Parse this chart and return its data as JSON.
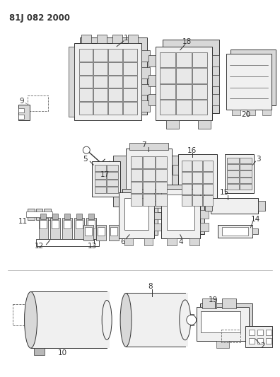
{
  "title": "81J 082 2000",
  "bg": "#ffffff",
  "lc": "#333333",
  "fc_light": "#f0f0f0",
  "fc_med": "#d8d8d8",
  "fc_dark": "#b8b8b8",
  "lw": 0.7,
  "lfs": 7.5,
  "tfs": 8.5,
  "fig_w": 3.96,
  "fig_h": 5.33,
  "dpi": 100,
  "xlim": [
    0,
    396
  ],
  "ylim": [
    0,
    533
  ]
}
